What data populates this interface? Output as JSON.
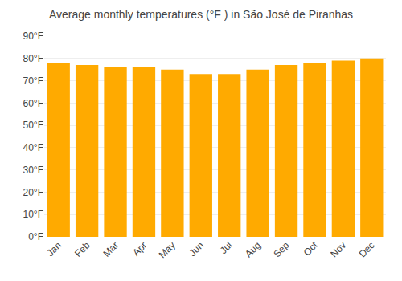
{
  "chart_data": {
    "type": "bar",
    "title": "Average monthly temperatures (°F ) in São José de Piranhas",
    "categories": [
      "Jan",
      "Feb",
      "Mar",
      "Apr",
      "May",
      "Jun",
      "Jul",
      "Aug",
      "Sep",
      "Oct",
      "Nov",
      "Dec"
    ],
    "values": [
      78,
      77,
      76,
      76,
      75,
      73,
      73,
      75,
      77,
      78,
      79,
      80
    ],
    "color": "#FFAA00",
    "ylim": [
      0,
      90
    ],
    "yticks": [
      {
        "value": 0,
        "label": "0°F"
      },
      {
        "value": 10,
        "label": "10°F"
      },
      {
        "value": 20,
        "label": "20°F"
      },
      {
        "value": 30,
        "label": "30°F"
      },
      {
        "value": 40,
        "label": "40°F"
      },
      {
        "value": 50,
        "label": "50°F"
      },
      {
        "value": 60,
        "label": "60°F"
      },
      {
        "value": 70,
        "label": "70°F"
      },
      {
        "value": 80,
        "label": "80°F"
      },
      {
        "value": 90,
        "label": "90°F"
      }
    ],
    "grid": true
  }
}
